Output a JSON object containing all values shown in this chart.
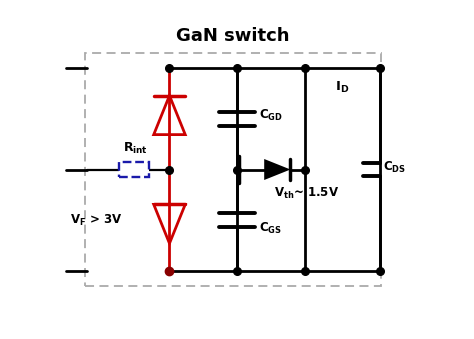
{
  "title": "GaN switch",
  "title_fontsize": 13,
  "background_color": "#ffffff",
  "black": "#000000",
  "red": "#cc0000",
  "dark_blue": "#1a1aaa",
  "fig_width": 4.74,
  "fig_height": 3.39,
  "dpi": 100,
  "XL": 1.0,
  "XA": 3.2,
  "XG": 5.0,
  "XD": 6.8,
  "XR": 8.8,
  "YT": 7.2,
  "YM": 4.5,
  "YB": 1.8,
  "lw": 2.0,
  "lw_thin": 1.6
}
